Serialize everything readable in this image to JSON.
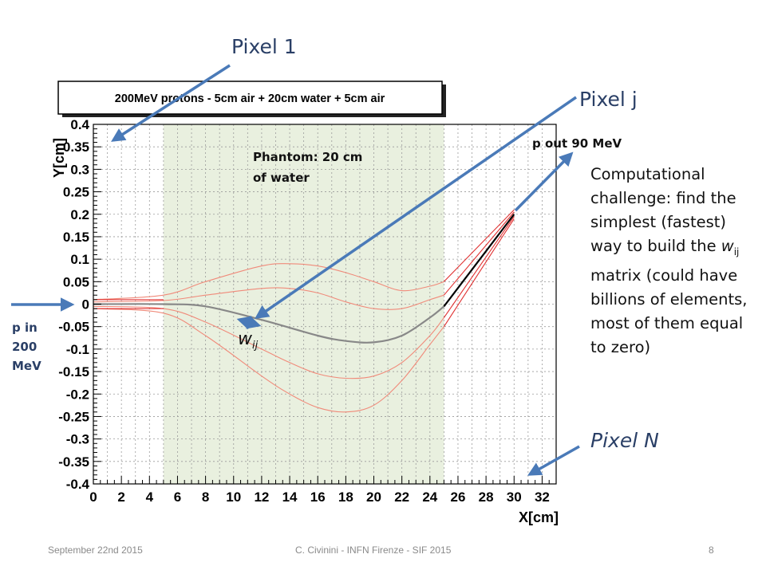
{
  "chart_data": {
    "type": "line",
    "title": "200MeV protons - 5cm air + 20cm water + 5cm air",
    "xlabel": "X[cm]",
    "ylabel": "Y[cm]",
    "xlim": [
      0,
      33
    ],
    "ylim": [
      -0.4,
      0.4
    ],
    "x_ticks": [
      0,
      2,
      4,
      6,
      8,
      10,
      12,
      14,
      16,
      18,
      20,
      22,
      24,
      26,
      28,
      30,
      32
    ],
    "y_ticks": [
      "0.4",
      "0.35",
      "0.3",
      "0.25",
      "0.2",
      "0.15",
      "0.1",
      "0.05",
      "0",
      "-0.05",
      "-0.1",
      "-0.15",
      "-0.2",
      "-0.25",
      "-0.3",
      "-0.35",
      "-0.4"
    ],
    "grid": true,
    "phantom_region": [
      5,
      25
    ],
    "series": [
      {
        "role": "most-likely-path",
        "color": "#888888",
        "x": [
          0,
          5,
          8,
          12,
          16,
          18,
          20,
          22,
          24,
          25
        ],
        "y": [
          0,
          0,
          -0.005,
          -0.035,
          -0.07,
          -0.082,
          -0.085,
          -0.07,
          -0.03,
          -0.005
        ]
      },
      {
        "role": "most-likely-path-exit",
        "color": "#000000",
        "x": [
          25,
          30
        ],
        "y": [
          -0.005,
          0.2
        ]
      },
      {
        "role": "upper-envelope-outer",
        "color": "#f08a7a",
        "x": [
          0,
          5,
          8,
          12,
          14,
          16,
          18,
          20,
          22,
          24,
          25
        ],
        "y": [
          0.01,
          0.02,
          0.05,
          0.085,
          0.09,
          0.085,
          0.07,
          0.05,
          0.03,
          0.04,
          0.05
        ]
      },
      {
        "role": "upper-envelope-inner",
        "color": "#f08a7a",
        "x": [
          0,
          5,
          8,
          12,
          14,
          16,
          18,
          20,
          22,
          24,
          25
        ],
        "y": [
          0.005,
          0.008,
          0.02,
          0.035,
          0.035,
          0.025,
          0.005,
          -0.01,
          -0.01,
          0.01,
          0.02
        ]
      },
      {
        "role": "lower-envelope-inner",
        "color": "#f08a7a",
        "x": [
          0,
          5,
          8,
          12,
          14,
          16,
          18,
          20,
          22,
          24,
          25
        ],
        "y": [
          -0.005,
          -0.01,
          -0.04,
          -0.1,
          -0.13,
          -0.155,
          -0.165,
          -0.16,
          -0.13,
          -0.07,
          -0.03
        ]
      },
      {
        "role": "lower-envelope-outer",
        "color": "#f08a7a",
        "x": [
          0,
          5,
          8,
          12,
          14,
          16,
          18,
          20,
          22,
          24,
          25
        ],
        "y": [
          -0.01,
          -0.02,
          -0.07,
          -0.16,
          -0.2,
          -0.23,
          -0.24,
          -0.225,
          -0.17,
          -0.09,
          -0.05
        ]
      },
      {
        "role": "exit-upper-outer",
        "color": "#e03030",
        "x": [
          25,
          30
        ],
        "y": [
          0.05,
          0.21
        ]
      },
      {
        "role": "exit-upper-inner",
        "color": "#e03030",
        "x": [
          25,
          30
        ],
        "y": [
          0.02,
          0.205
        ]
      },
      {
        "role": "exit-lower-inner",
        "color": "#e03030",
        "x": [
          25,
          30
        ],
        "y": [
          -0.03,
          0.195
        ]
      },
      {
        "role": "exit-lower-outer",
        "color": "#e03030",
        "x": [
          25,
          30
        ],
        "y": [
          -0.05,
          0.19
        ]
      },
      {
        "role": "entry-upper",
        "color": "#e03030",
        "x": [
          0,
          5
        ],
        "y": [
          0.01,
          0.01
        ]
      },
      {
        "role": "entry-lower",
        "color": "#e03030",
        "x": [
          0,
          5
        ],
        "y": [
          -0.01,
          -0.01
        ]
      }
    ]
  },
  "annotations": {
    "pixel1": "Pixel 1",
    "pixelj": "Pixel j",
    "pixeln": "Pixel N",
    "pout": "p out 90 MeV",
    "phantom": "Phantom: 20 cm of water",
    "pin": "p in 200 MeV",
    "wij_base": "w",
    "wij_sub": "ij",
    "challenge_part1": "Computational challenge: find the simplest (fastest) way to build the ",
    "challenge_w": "w",
    "challenge_sub": "ij",
    "challenge_part2": " matrix (could have billions of elements, most of them equal to zero)"
  },
  "footer": {
    "date": "September 22nd 2015",
    "center": "C. Civinini - INFN Firenze - SIF 2015",
    "page": "8"
  },
  "colors": {
    "arrow": "#4a7ab8",
    "phantom_fill": "#e9f0df",
    "grid": "#9a9a9a",
    "envelope": "#f08a7a",
    "exit_lines": "#e03030"
  }
}
